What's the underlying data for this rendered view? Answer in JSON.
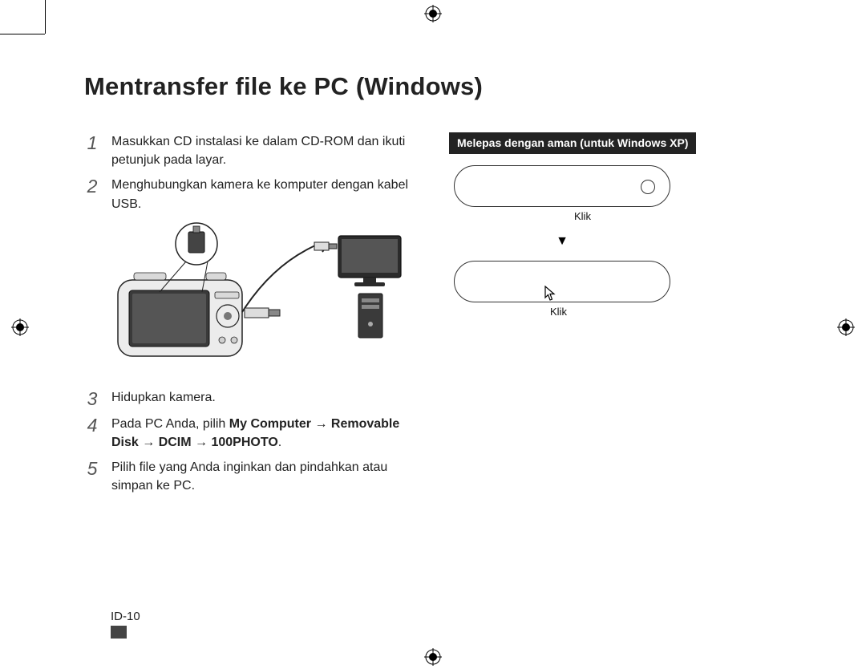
{
  "page_title": "Mentransfer file ke PC (Windows)",
  "steps": [
    {
      "num": "1",
      "text": "Masukkan CD instalasi ke dalam CD-ROM dan ikuti petunjuk pada layar."
    },
    {
      "num": "2",
      "text": "Menghubungkan kamera ke komputer dengan kabel USB."
    },
    {
      "num": "3",
      "text": "Hidupkan kamera."
    },
    {
      "num": "4",
      "html": "Pada PC Anda, pilih <strong>My Computer → Removable Disk → DCIM → 100PHOTO</strong>."
    },
    {
      "num": "5",
      "text": "Pilih file yang Anda inginkan dan pindahkan atau simpan ke PC."
    }
  ],
  "callout_title": "Melepas dengan aman (untuk Windows XP)",
  "klik_label": "Klik",
  "page_number": "ID-10",
  "colors": {
    "text": "#222222",
    "callout_bg": "#232323",
    "border": "#333333",
    "step_num": "#555555"
  },
  "fontsizes": {
    "title": 31,
    "body": 16,
    "step_num": 23,
    "callout": 14,
    "klik": 13,
    "page_num": 15
  }
}
